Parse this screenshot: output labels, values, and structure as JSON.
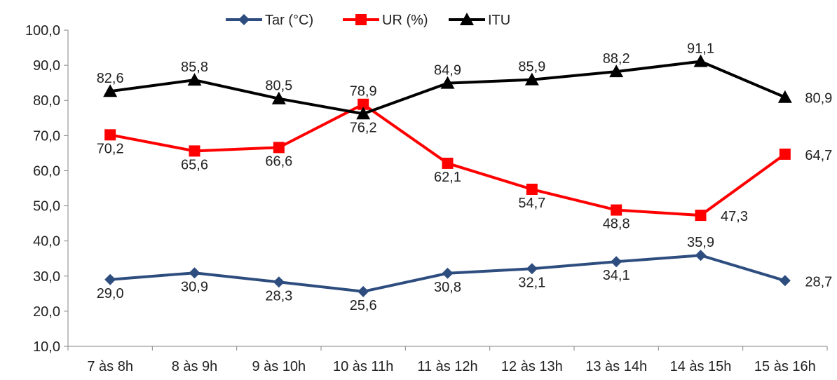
{
  "chart_data": {
    "type": "line",
    "categories": [
      "7 às 8h",
      "8 às 9h",
      "9 às 10h",
      "10 às 11h",
      "11 às 12h",
      "12 às 13h",
      "13 às 14h",
      "14 às 15h",
      "15 às 16h"
    ],
    "ylim": [
      10,
      100
    ],
    "yticks": [
      10,
      20,
      30,
      40,
      50,
      60,
      70,
      80,
      90,
      100
    ],
    "ytick_labels": [
      "10,0",
      "20,0",
      "30,0",
      "40,0",
      "50,0",
      "60,0",
      "70,0",
      "80,0",
      "90,0",
      "100,0"
    ],
    "grid": false,
    "legend_position": "top",
    "series": [
      {
        "name": "Tar (°C)",
        "color": "#2e4d7f",
        "marker": "diamond",
        "values": [
          29.0,
          30.9,
          28.3,
          25.6,
          30.8,
          32.1,
          34.1,
          35.9,
          28.7
        ],
        "labels": [
          "29,0",
          "30,9",
          "28,3",
          "25,6",
          "30,8",
          "32,1",
          "34,1",
          "35,9",
          "28,7"
        ]
      },
      {
        "name": "UR (%)",
        "color": "#ff0000",
        "marker": "square",
        "values": [
          70.2,
          65.6,
          66.6,
          78.9,
          62.1,
          54.7,
          48.8,
          47.3,
          64.7
        ],
        "labels": [
          "70,2",
          "65,6",
          "66,6",
          "78,9",
          "62,1",
          "54,7",
          "48,8",
          "47,3",
          "64,7"
        ]
      },
      {
        "name": "ITU",
        "color": "#000000",
        "marker": "triangle",
        "values": [
          82.6,
          85.8,
          80.5,
          76.2,
          84.9,
          85.9,
          88.2,
          91.1,
          80.9
        ],
        "labels": [
          "82,6",
          "85,8",
          "80,5",
          "76,2",
          "84,9",
          "85,9",
          "88,2",
          "91,1",
          "80,9"
        ]
      }
    ]
  }
}
